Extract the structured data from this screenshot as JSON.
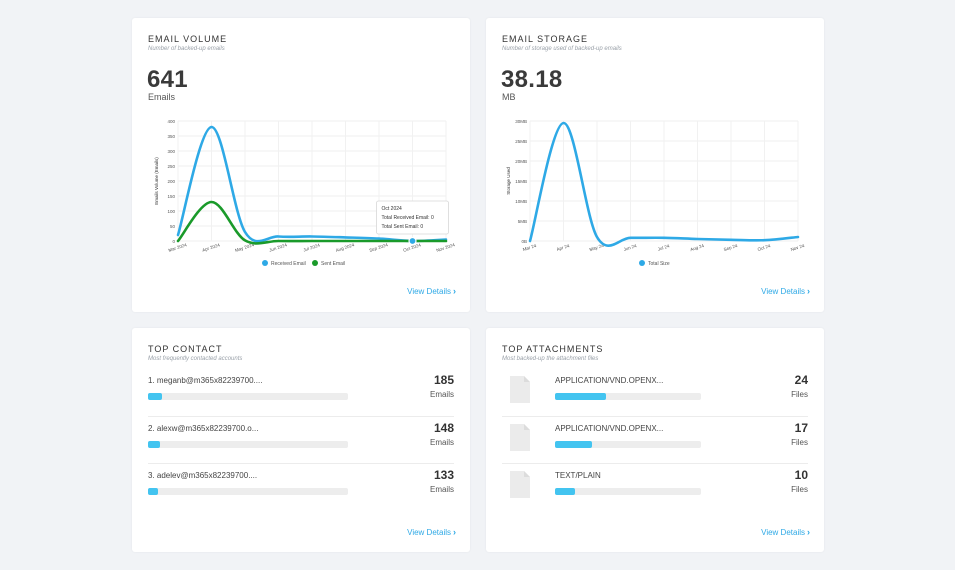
{
  "email_volume": {
    "title": "EMAIL VOLUME",
    "subtitle": "Number of backed-up emails",
    "total": "641",
    "unit": "Emails",
    "view_details": "View Details",
    "chart_data": {
      "type": "line",
      "x": [
        "Mar 2024",
        "Apr 2024",
        "May 2024",
        "Jun 2024",
        "Jul 2024",
        "Aug 2024",
        "Sep 2024",
        "Oct 2024",
        "Nov 2024"
      ],
      "ylabel": "Emails Volume (Emails)",
      "ylim": [
        0,
        400
      ],
      "yticks": [
        "0",
        "50",
        "100",
        "150",
        "200",
        "250",
        "300",
        "350",
        "400"
      ],
      "series": [
        {
          "name": "Received Email",
          "color": "#2ea9e6",
          "values": [
            20,
            380,
            30,
            15,
            15,
            12,
            8,
            0,
            5
          ]
        },
        {
          "name": "Sent Email",
          "color": "#1a9a2a",
          "values": [
            0,
            130,
            2,
            0,
            0,
            0,
            0,
            0,
            0
          ]
        }
      ],
      "tooltip": {
        "title": "Oct 2024",
        "line1": "Total Received Email: 0",
        "line2": "Total Sent Email: 0"
      }
    }
  },
  "email_storage": {
    "title": "EMAIL STORAGE",
    "subtitle": "Number of storage used of backed-up emails",
    "total": "38.18",
    "unit": "MB",
    "view_details": "View Details",
    "chart_data": {
      "type": "line",
      "x": [
        "Mar 24",
        "Apr 24",
        "May 24",
        "Jun 24",
        "Jul 24",
        "Aug 24",
        "Sep 24",
        "Oct 24",
        "Nov 24"
      ],
      "ylabel": "Storage Used",
      "ylim": [
        0,
        30
      ],
      "yticks": [
        "0B",
        "5MB",
        "10MB",
        "15MB",
        "20MB",
        "25MB",
        "30MB"
      ],
      "series": [
        {
          "name": "Total Size",
          "color": "#2ea9e6",
          "values": [
            0,
            29.5,
            1,
            0.8,
            0.8,
            0.5,
            0.3,
            0.2,
            1
          ]
        }
      ]
    }
  },
  "top_contact": {
    "title": "TOP CONTACT",
    "subtitle": "Most frequently contacted accounts",
    "view_details": "View Details",
    "items": [
      {
        "label": "1. meganb@m365x82239700....",
        "count": "185",
        "unit": "Emails",
        "fraction": 0.07
      },
      {
        "label": "2. alexw@m365x82239700.o...",
        "count": "148",
        "unit": "Emails",
        "fraction": 0.06
      },
      {
        "label": "3. adelev@m365x82239700....",
        "count": "133",
        "unit": "Emails",
        "fraction": 0.05
      }
    ]
  },
  "top_attachments": {
    "title": "TOP ATTACHMENTS",
    "subtitle": "Most backed-up the attachment files",
    "view_details": "View Details",
    "items": [
      {
        "label": "APPLICATION/VND.OPENX...",
        "count": "24",
        "unit": "Files",
        "fraction": 0.35,
        "icon": "file-icon"
      },
      {
        "label": "APPLICATION/VND.OPENX...",
        "count": "17",
        "unit": "Files",
        "fraction": 0.25,
        "icon": "file-icon"
      },
      {
        "label": "TEXT/PLAIN",
        "count": "10",
        "unit": "Files",
        "fraction": 0.14,
        "icon": "file-icon"
      }
    ]
  }
}
